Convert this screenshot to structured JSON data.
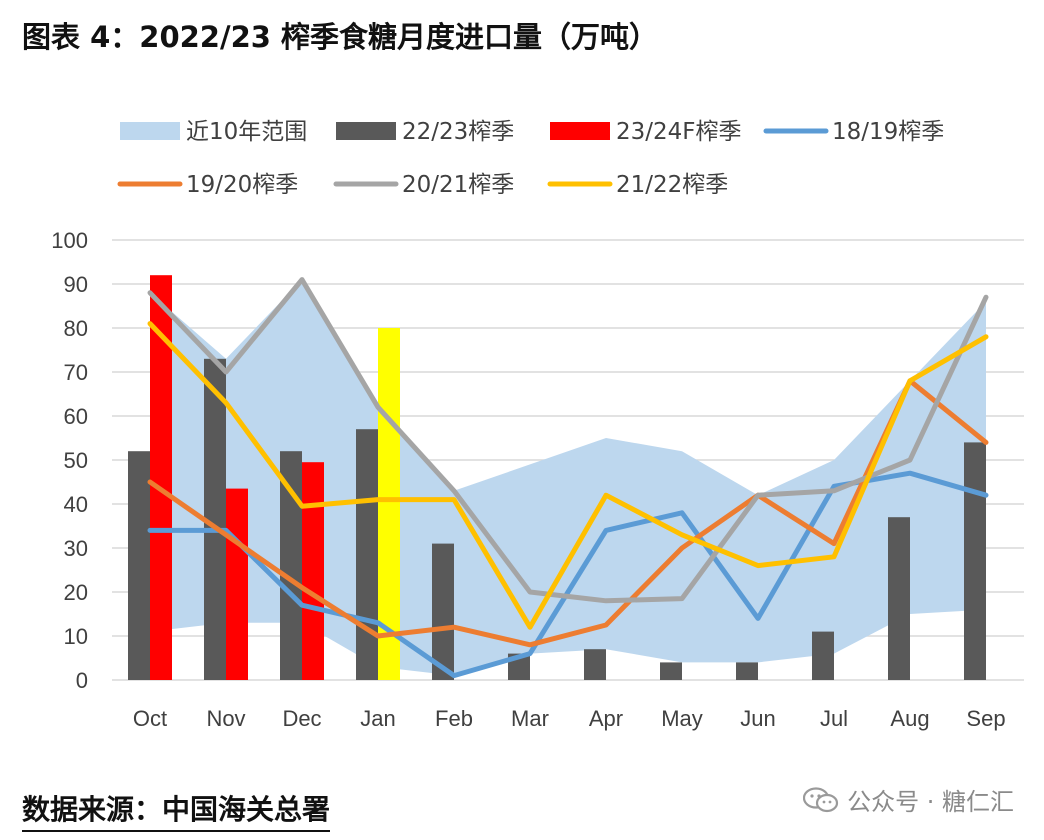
{
  "title": "图表 4：2022/23 榨季食糖月度进口量（万吨）",
  "source": "数据来源：中国海关总署",
  "watermark": {
    "icon": "wechat-icon",
    "text": "公众号 · 糖仁汇"
  },
  "colors": {
    "band": "#bdd7ee",
    "bar_2223": "#595959",
    "bar_2324": "#ff0000",
    "bar_jan_highlight": "#ffff00",
    "line_1819": "#5b9bd5",
    "line_1920": "#ed7d31",
    "line_2021": "#a5a5a5",
    "line_2122": "#ffc000",
    "grid": "#d9d9d9",
    "axis_text": "#404040"
  },
  "chart_data": {
    "type": "bar",
    "categories": [
      "Oct",
      "Nov",
      "Dec",
      "Jan",
      "Feb",
      "Mar",
      "Apr",
      "May",
      "Jun",
      "Jul",
      "Aug",
      "Sep"
    ],
    "ylim": [
      0,
      100
    ],
    "yticks": [
      0,
      10,
      20,
      30,
      40,
      50,
      60,
      70,
      80,
      90,
      100
    ],
    "grid": true,
    "legend_position": "top",
    "band": {
      "name": "近10年范围",
      "lower": [
        11,
        13,
        13,
        3,
        1,
        6,
        7,
        4,
        4,
        6,
        15,
        16
      ],
      "upper": [
        88,
        73,
        91,
        62,
        43,
        49,
        55,
        52,
        42,
        50,
        68,
        86
      ]
    },
    "bars": [
      {
        "name": "22/23榨季",
        "values": [
          52,
          73,
          52,
          57,
          31,
          6,
          7,
          4,
          4,
          11,
          37,
          54
        ]
      },
      {
        "name": "23/24F榨季",
        "values": [
          92,
          43.5,
          49.5,
          80,
          null,
          null,
          null,
          null,
          null,
          null,
          null,
          null
        ]
      }
    ],
    "lines": [
      {
        "name": "18/19榨季",
        "values": [
          34,
          34,
          17,
          13,
          1,
          6,
          34,
          38,
          14,
          44,
          47,
          42
        ]
      },
      {
        "name": "19/20榨季",
        "values": [
          45,
          33,
          21,
          10,
          12,
          8,
          12.5,
          30,
          42,
          31,
          68,
          54
        ]
      },
      {
        "name": "20/21榨季",
        "values": [
          88,
          70,
          91,
          62,
          43,
          20,
          18,
          18.5,
          42,
          43,
          50,
          87
        ]
      },
      {
        "name": "21/22榨季",
        "values": [
          81,
          63,
          39.5,
          41,
          41,
          12,
          42,
          33,
          26,
          28,
          68,
          78
        ]
      }
    ]
  }
}
